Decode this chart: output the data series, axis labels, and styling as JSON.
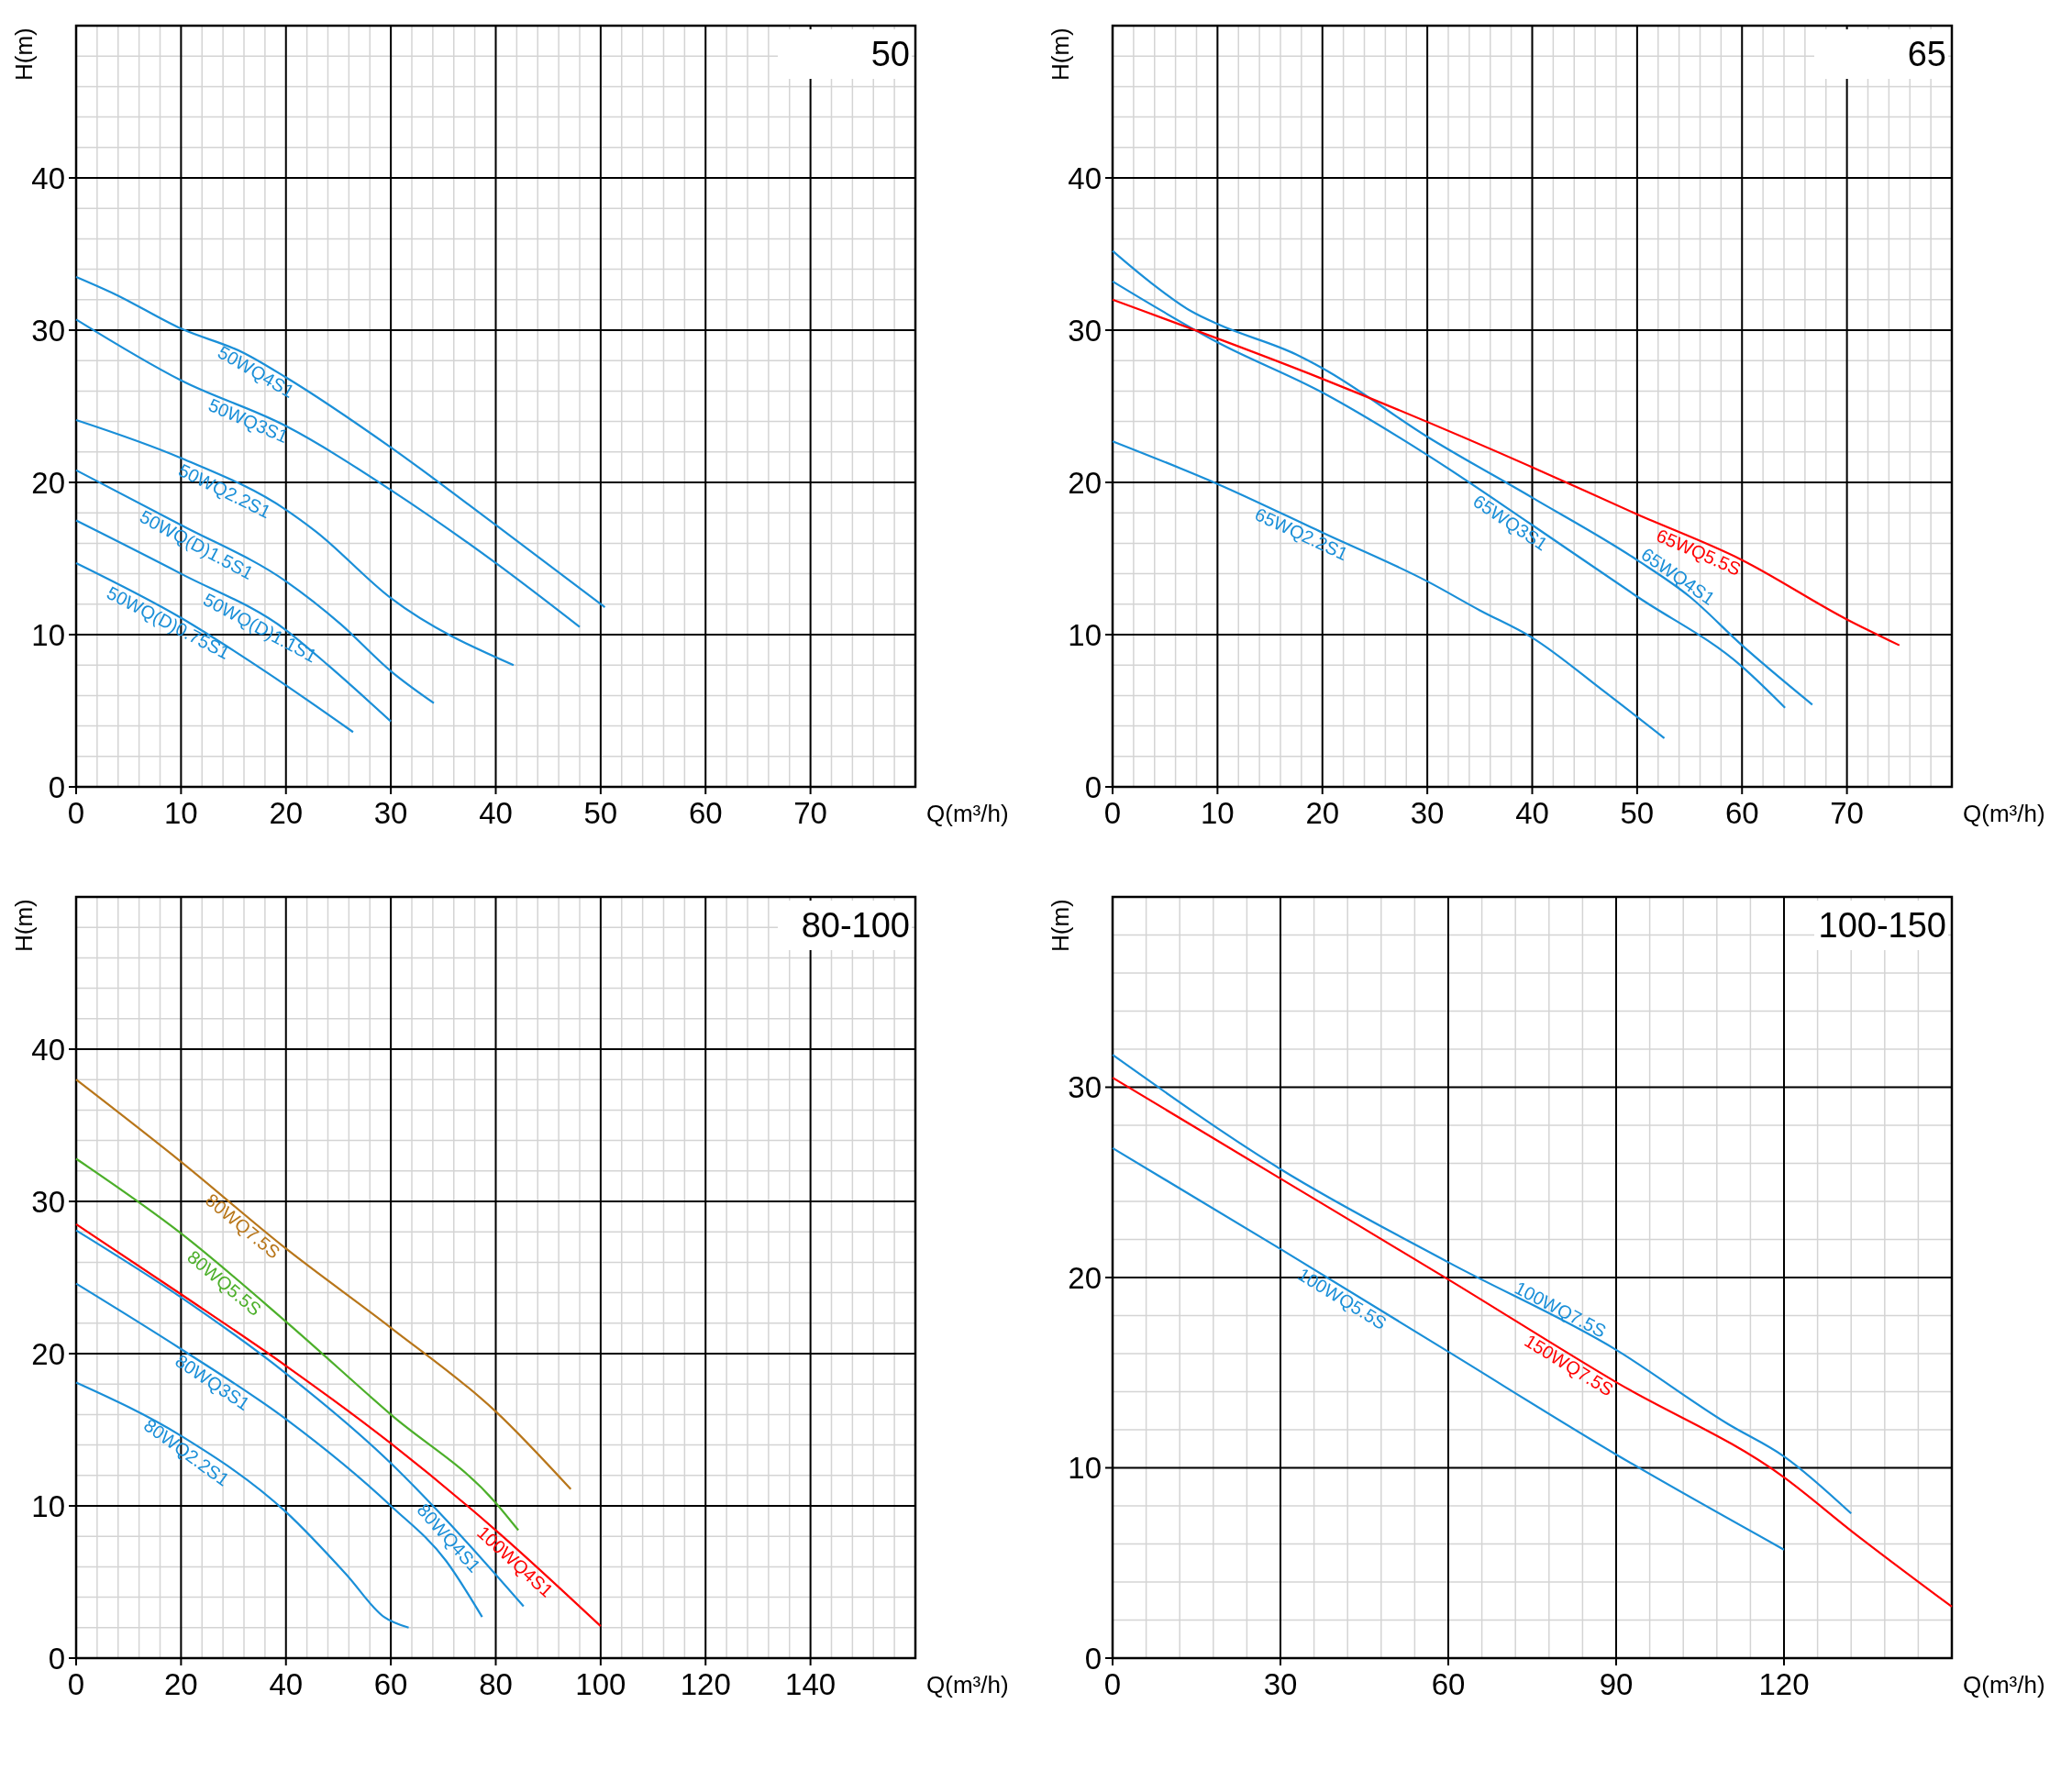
{
  "chart_data": [
    {
      "type": "line",
      "title": "50",
      "xlabel": "Q(m³/h)",
      "ylabel": "H(m)",
      "xlim": [
        0,
        80
      ],
      "ylim": [
        0,
        50
      ],
      "xticks": [
        0,
        10,
        20,
        30,
        40,
        50,
        60,
        70
      ],
      "yticks": [
        0,
        10,
        20,
        30,
        40
      ],
      "grid": true,
      "legend": false,
      "marker": "none",
      "series": [
        {
          "name": "50WQ4S1",
          "color": "#1a8fd8",
          "x": [
            0,
            3.6,
            10,
            16,
            20,
            30,
            40,
            50.4
          ],
          "values": [
            33.5,
            32.4,
            30.1,
            28.5,
            26.9,
            22.3,
            17.2,
            11.8
          ]
        },
        {
          "name": "50WQ3S1",
          "color": "#1a8fd8",
          "x": [
            0,
            10,
            20,
            30,
            40,
            48
          ],
          "values": [
            30.7,
            26.7,
            23.7,
            19.5,
            14.7,
            10.5
          ]
        },
        {
          "name": "50WQ2.2S1",
          "color": "#1a8fd8",
          "x": [
            0,
            10,
            20,
            22.8,
            30,
            41.7
          ],
          "values": [
            24.1,
            21.6,
            18.2,
            16.8,
            12.4,
            8.0
          ]
        },
        {
          "name": "50WQ(D)1.5S1",
          "color": "#1a8fd8",
          "x": [
            0,
            10,
            20,
            25.2,
            30,
            34.1
          ],
          "values": [
            20.8,
            17.2,
            13.5,
            10.7,
            7.6,
            5.5
          ]
        },
        {
          "name": "50WQ(D)1.1S1",
          "color": "#1a8fd8",
          "x": [
            0,
            10,
            20,
            24,
            30
          ],
          "values": [
            17.5,
            14.0,
            10.3,
            8.0,
            4.3
          ]
        },
        {
          "name": "50WQ(D)0.75S1",
          "color": "#1a8fd8",
          "x": [
            0,
            10,
            18,
            26.4
          ],
          "values": [
            14.7,
            11.1,
            7.6,
            3.6
          ]
        }
      ]
    },
    {
      "type": "line",
      "title": "65",
      "xlabel": "Q(m³/h)",
      "ylabel": "H(m)",
      "xlim": [
        0,
        80
      ],
      "ylim": [
        0,
        50
      ],
      "xticks": [
        0,
        10,
        20,
        30,
        40,
        50,
        60,
        70
      ],
      "yticks": [
        0,
        10,
        20,
        30,
        40
      ],
      "grid": true,
      "legend": false,
      "marker": "none",
      "series": [
        {
          "name": "65WQ4S1",
          "color": "#1a8fd8",
          "x": [
            0,
            3.5,
            7.6,
            10,
            17.5,
            20,
            30,
            40,
            50,
            55,
            60,
            66.7
          ],
          "values": [
            35.2,
            33.2,
            31.2,
            30.4,
            28.4,
            27.5,
            23.0,
            19.0,
            14.9,
            12.5,
            9.3,
            5.4
          ]
        },
        {
          "name": "65WQ3S1",
          "color": "#1a8fd8",
          "x": [
            0,
            10,
            20,
            30,
            40,
            50,
            60,
            64.1
          ],
          "values": [
            33.2,
            29.2,
            25.9,
            21.8,
            17.2,
            12.5,
            7.9,
            5.2
          ]
        },
        {
          "name": "65WQ5.5S",
          "color": "#ff0000",
          "x": [
            0,
            20,
            40,
            50,
            60,
            70,
            75
          ],
          "values": [
            32.0,
            26.8,
            21.0,
            17.9,
            14.9,
            11.0,
            9.3
          ]
        },
        {
          "name": "65WQ2.2S1",
          "color": "#1a8fd8",
          "x": [
            0,
            10,
            20,
            30,
            35,
            40,
            46.8,
            52.6
          ],
          "values": [
            22.7,
            19.9,
            16.7,
            13.5,
            11.6,
            9.8,
            6.3,
            3.2
          ]
        }
      ]
    },
    {
      "type": "line",
      "title": "80-100",
      "xlabel": "Q(m³/h)",
      "ylabel": "H(m)",
      "xlim": [
        0,
        160
      ],
      "ylim": [
        0,
        50
      ],
      "xticks": [
        0,
        20,
        40,
        60,
        80,
        100,
        120,
        140
      ],
      "yticks": [
        0,
        10,
        20,
        30,
        40
      ],
      "grid": true,
      "legend": false,
      "marker": "none",
      "series": [
        {
          "name": "80WQ7.5S",
          "color": "#b8761a",
          "x": [
            0,
            20,
            40,
            60,
            80,
            94.3
          ],
          "values": [
            38.0,
            32.6,
            26.9,
            21.7,
            16.2,
            11.1
          ]
        },
        {
          "name": "80WQ5.5S",
          "color": "#4caf2a",
          "x": [
            0,
            20,
            40,
            60,
            80,
            84.3
          ],
          "values": [
            32.8,
            27.9,
            22.1,
            16.0,
            10.2,
            8.4
          ]
        },
        {
          "name": "100WQ4S1",
          "color": "#ff0000",
          "x": [
            0,
            20,
            40,
            60,
            80,
            100
          ],
          "values": [
            28.5,
            23.9,
            19.2,
            14.1,
            8.4,
            2.1
          ]
        },
        {
          "name": "80WQ4S1",
          "color": "#1a8fd8",
          "x": [
            0,
            20,
            40,
            60,
            70.5,
            85.3
          ],
          "values": [
            28.1,
            23.7,
            18.7,
            12.8,
            9.1,
            3.4
          ]
        },
        {
          "name": "80WQ3S1",
          "color": "#1a8fd8",
          "x": [
            0,
            20,
            40,
            60,
            70.5,
            77.4
          ],
          "values": [
            24.6,
            20.3,
            15.7,
            10.0,
            6.4,
            2.7
          ]
        },
        {
          "name": "80WQ2.2S1",
          "color": "#1a8fd8",
          "x": [
            0,
            20,
            40,
            51.5,
            58.7,
            63.4
          ],
          "values": [
            18.1,
            14.6,
            9.6,
            5.5,
            2.7,
            2.0
          ]
        }
      ]
    },
    {
      "type": "line",
      "title": "100-150",
      "xlabel": "Q(m³/h)",
      "ylabel": "H(m)",
      "xlim": [
        0,
        150
      ],
      "ylim": [
        0,
        40
      ],
      "xticks": [
        0,
        30,
        60,
        90,
        120
      ],
      "yticks": [
        0,
        10,
        20,
        30
      ],
      "grid": true,
      "legend": false,
      "marker": "none",
      "series": [
        {
          "name": "100WQ7.5S",
          "color": "#1a8fd8",
          "x": [
            0,
            30,
            60,
            90,
            110,
            120,
            132
          ],
          "values": [
            31.7,
            25.7,
            20.8,
            16.2,
            12.3,
            10.6,
            7.6
          ]
        },
        {
          "name": "150WQ7.5S",
          "color": "#ff0000",
          "x": [
            0,
            30,
            60,
            90,
            120,
            132.4,
            150
          ],
          "values": [
            30.5,
            25.2,
            19.9,
            14.5,
            9.5,
            6.6,
            2.7
          ]
        },
        {
          "name": "100WQ5.5S",
          "color": "#1a8fd8",
          "x": [
            0,
            30,
            60,
            90,
            120
          ],
          "values": [
            26.8,
            21.5,
            16.1,
            10.7,
            5.7
          ]
        }
      ]
    }
  ]
}
